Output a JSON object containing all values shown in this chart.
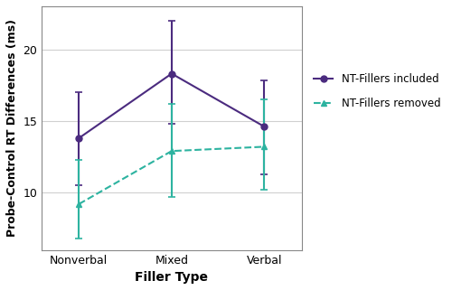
{
  "categories": [
    "Nonverbal",
    "Mixed",
    "Verbal"
  ],
  "nt_included_means": [
    13.8,
    18.3,
    14.6
  ],
  "nt_included_ci_upper": [
    17.0,
    22.0,
    17.8
  ],
  "nt_included_ci_lower": [
    10.5,
    14.8,
    11.3
  ],
  "nt_removed_means": [
    9.2,
    12.9,
    13.2
  ],
  "nt_removed_ci_upper": [
    12.3,
    16.2,
    16.5
  ],
  "nt_removed_ci_lower": [
    6.8,
    9.7,
    10.2
  ],
  "color_included": "#4B2B7F",
  "color_removed": "#2DB3A0",
  "xlabel": "Filler Type",
  "ylabel": "Probe-Control RT Differences (ms)",
  "ylim": [
    6,
    23
  ],
  "yticks": [
    10,
    15,
    20
  ],
  "legend_label_included": "NT-Fillers included",
  "legend_label_removed": "NT-Fillers removed",
  "background_color": "#FFFFFF",
  "grid_color": "#D0D0D0"
}
